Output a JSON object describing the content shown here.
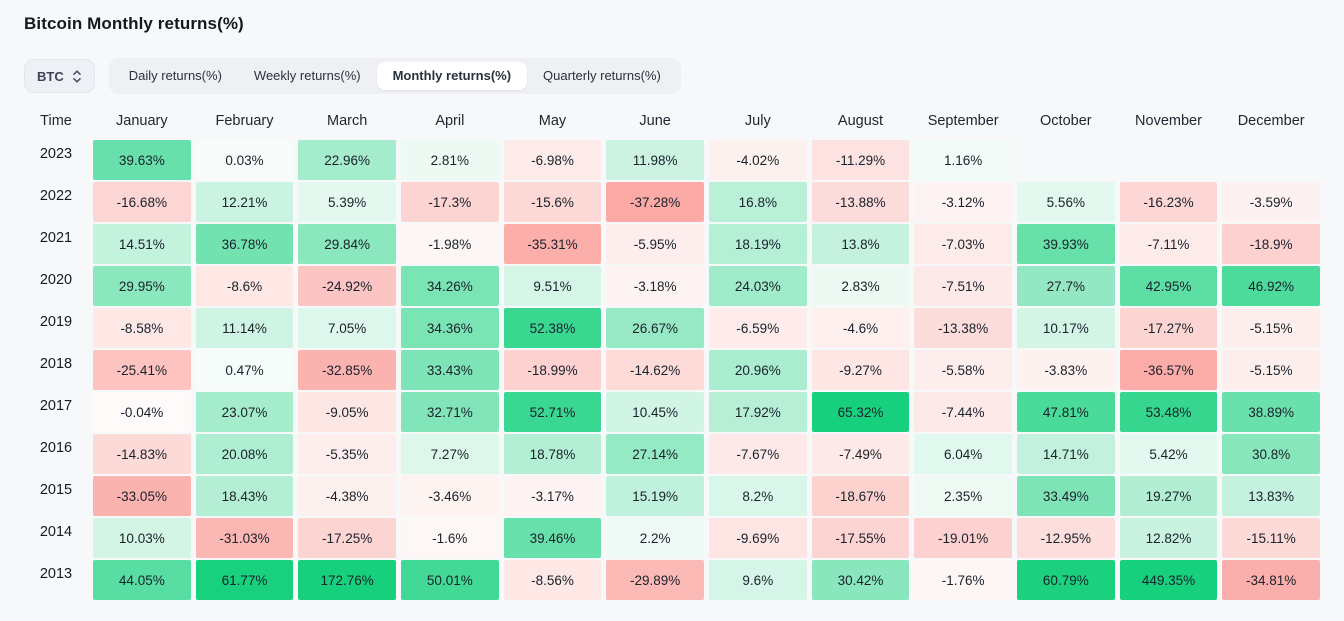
{
  "page": {
    "title": "Bitcoin Monthly returns(%)"
  },
  "controls": {
    "symbol_select": {
      "value": "BTC",
      "icon": "chevron-updown-icon"
    },
    "tabs": [
      {
        "label": "Daily returns(%)",
        "active": false
      },
      {
        "label": "Weekly returns(%)",
        "active": false
      },
      {
        "label": "Monthly returns(%)",
        "active": true
      },
      {
        "label": "Quarterly returns(%)",
        "active": false
      }
    ]
  },
  "chart_data": {
    "type": "heatmap",
    "title": "Bitcoin Monthly returns(%)",
    "unit": "%",
    "columns": [
      "Time",
      "January",
      "February",
      "March",
      "April",
      "May",
      "June",
      "July",
      "August",
      "September",
      "October",
      "November",
      "December"
    ],
    "rows": [
      {
        "year": "2023",
        "values": [
          "39.63%",
          "0.03%",
          "22.96%",
          "2.81%",
          "-6.98%",
          "11.98%",
          "-4.02%",
          "-11.29%",
          "1.16%",
          "",
          "",
          ""
        ]
      },
      {
        "year": "2022",
        "values": [
          "-16.68%",
          "12.21%",
          "5.39%",
          "-17.3%",
          "-15.6%",
          "-37.28%",
          "16.8%",
          "-13.88%",
          "-3.12%",
          "5.56%",
          "-16.23%",
          "-3.59%"
        ]
      },
      {
        "year": "2021",
        "values": [
          "14.51%",
          "36.78%",
          "29.84%",
          "-1.98%",
          "-35.31%",
          "-5.95%",
          "18.19%",
          "13.8%",
          "-7.03%",
          "39.93%",
          "-7.11%",
          "-18.9%"
        ]
      },
      {
        "year": "2020",
        "values": [
          "29.95%",
          "-8.6%",
          "-24.92%",
          "34.26%",
          "9.51%",
          "-3.18%",
          "24.03%",
          "2.83%",
          "-7.51%",
          "27.7%",
          "42.95%",
          "46.92%"
        ]
      },
      {
        "year": "2019",
        "values": [
          "-8.58%",
          "11.14%",
          "7.05%",
          "34.36%",
          "52.38%",
          "26.67%",
          "-6.59%",
          "-4.6%",
          "-13.38%",
          "10.17%",
          "-17.27%",
          "-5.15%"
        ]
      },
      {
        "year": "2018",
        "values": [
          "-25.41%",
          "0.47%",
          "-32.85%",
          "33.43%",
          "-18.99%",
          "-14.62%",
          "20.96%",
          "-9.27%",
          "-5.58%",
          "-3.83%",
          "-36.57%",
          "-5.15%"
        ]
      },
      {
        "year": "2017",
        "values": [
          "-0.04%",
          "23.07%",
          "-9.05%",
          "32.71%",
          "52.71%",
          "10.45%",
          "17.92%",
          "65.32%",
          "-7.44%",
          "47.81%",
          "53.48%",
          "38.89%"
        ]
      },
      {
        "year": "2016",
        "values": [
          "-14.83%",
          "20.08%",
          "-5.35%",
          "7.27%",
          "18.78%",
          "27.14%",
          "-7.67%",
          "-7.49%",
          "6.04%",
          "14.71%",
          "5.42%",
          "30.8%"
        ]
      },
      {
        "year": "2015",
        "values": [
          "-33.05%",
          "18.43%",
          "-4.38%",
          "-3.46%",
          "-3.17%",
          "15.19%",
          "8.2%",
          "-18.67%",
          "2.35%",
          "33.49%",
          "19.27%",
          "13.83%"
        ]
      },
      {
        "year": "2014",
        "values": [
          "10.03%",
          "-31.03%",
          "-17.25%",
          "-1.6%",
          "39.46%",
          "2.2%",
          "-9.69%",
          "-17.55%",
          "-19.01%",
          "-12.95%",
          "12.82%",
          "-15.11%"
        ]
      },
      {
        "year": "2013",
        "values": [
          "44.05%",
          "61.77%",
          "172.76%",
          "50.01%",
          "-8.56%",
          "-29.89%",
          "9.6%",
          "30.42%",
          "-1.76%",
          "60.79%",
          "449.35%",
          "-34.81%"
        ]
      }
    ],
    "colors": {
      "positive_max": "#17d07e",
      "positive_min": "#f7fcfa",
      "negative_max": "#fba4a0",
      "negative_min": "#fdfaf9",
      "positive_saturation_at": 62,
      "negative_saturation_at": 40
    },
    "layout": {
      "legend": "none",
      "grid": "off",
      "cell_text_color": "#1a212b"
    }
  }
}
